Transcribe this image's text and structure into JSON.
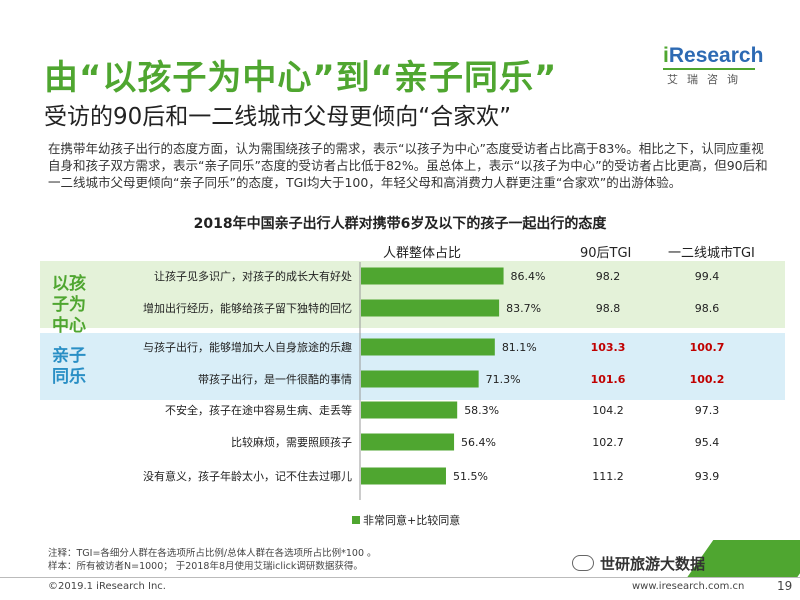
{
  "header": {
    "title": "由“以孩子为中心”到“亲子同乐”",
    "subtitle": "受访的90后和一二线城市父母更倾向“合家欢”"
  },
  "logo": {
    "brand_i": "i",
    "brand_rest": "Research",
    "sub": "艾瑞咨询"
  },
  "description": "在携带年幼孩子出行的态度方面，认为需围绕孩子的需求，表示“以孩子为中心”态度受访者占比高于83%。相比之下，认同应重视自身和孩子双方需求，表示“亲子同乐”态度的受访者占比低于82%。虽总体上，表示“以孩子为中心”的受访者占比更高，但90后和一二线城市父母更倾向“亲子同乐”的态度，TGI均大于100，年轻父母和高消费力人群更注重“合家欢”的出游体验。",
  "chart_data": {
    "type": "bar",
    "title": "2018年中国亲子出行人群对携带6岁及以下的孩子一起出行的态度",
    "columns": [
      "人群整体占比",
      "90后TGI",
      "一二线城市TGI"
    ],
    "groups": [
      {
        "label": "以孩子为中心",
        "color": "#4fa630",
        "rows": [
          0,
          1
        ]
      },
      {
        "label": "亲子同乐",
        "color": "#2a8fc5",
        "rows": [
          2,
          3
        ]
      }
    ],
    "categories": [
      "让孩子见多识广，对孩子的成长大有好处",
      "增加出行经历，能够给孩子留下独特的回忆",
      "与孩子出行，能够增加大人自身旅途的乐趣",
      "带孩子出行，是一件很酷的事情",
      "不安全，孩子在途中容易生病、走丢等",
      "比较麻烦，需要照顾孩子",
      "没有意义，孩子年龄太小，记不住去过哪儿"
    ],
    "values": [
      86.4,
      83.7,
      81.1,
      71.3,
      58.3,
      56.4,
      51.5
    ],
    "value_labels": [
      "86.4%",
      "83.7%",
      "81.1%",
      "71.3%",
      "58.3%",
      "56.4%",
      "51.5%"
    ],
    "tgi_90": [
      "98.2",
      "98.8",
      "103.3",
      "101.6",
      "104.2",
      "102.7",
      "111.2"
    ],
    "tgi_city": [
      "99.4",
      "98.6",
      "100.7",
      "100.2",
      "97.3",
      "95.4",
      "93.9"
    ],
    "highlight_rows": [
      2,
      3
    ],
    "highlight_color": "#c00000",
    "bar_color": "#4fa630",
    "legend": "非常同意+比较同意",
    "legend_position": "bottom",
    "xlim": [
      0,
      100
    ]
  },
  "notes": {
    "note1": "注释：TGI=各细分人群在各选项所占比例/总体人群在各选项所占比例*100 。",
    "note2": "样本：所有被访者N=1000； 于2018年8月使用艾瑞iclick调研数据获得。"
  },
  "footer": {
    "copyright": "©2019.1 iResearch Inc.",
    "site": "www.iresearch.com.cn",
    "page": "19",
    "watermark": "世研旅游大数据"
  }
}
